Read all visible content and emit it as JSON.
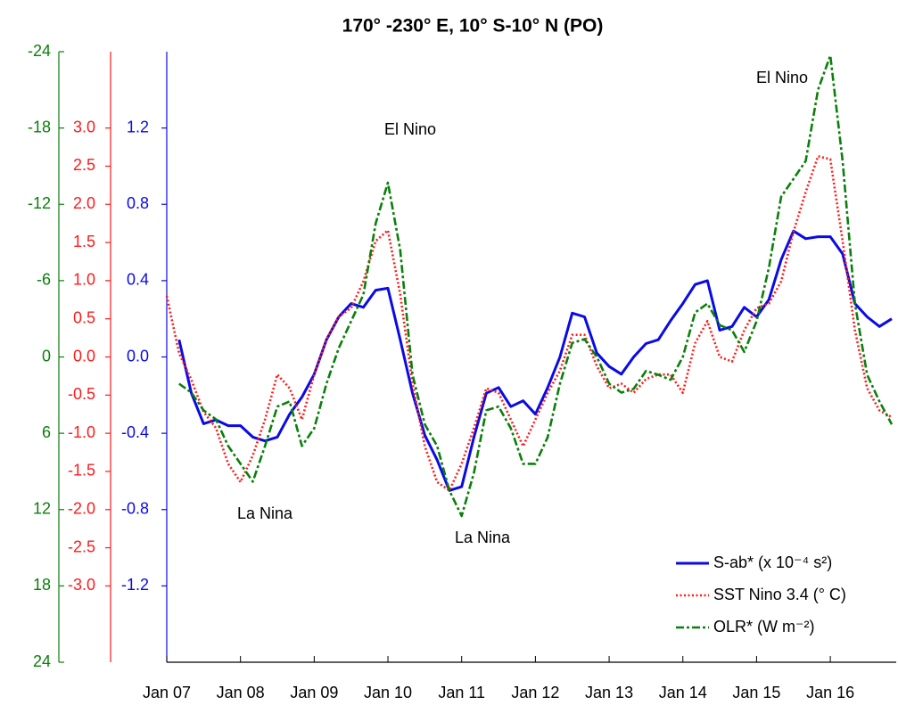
{
  "chart_data": {
    "type": "line",
    "title": "170° -230° E, 10° S-10° N  (PO)",
    "x": [
      "2007-01",
      "2007-03",
      "2007-05",
      "2007-07",
      "2007-09",
      "2007-11",
      "2008-01",
      "2008-03",
      "2008-05",
      "2008-07",
      "2008-09",
      "2008-11",
      "2009-01",
      "2009-03",
      "2009-05",
      "2009-07",
      "2009-09",
      "2009-11",
      "2010-01",
      "2010-03",
      "2010-05",
      "2010-07",
      "2010-09",
      "2010-11",
      "2011-01",
      "2011-03",
      "2011-05",
      "2011-07",
      "2011-09",
      "2011-11",
      "2012-01",
      "2012-03",
      "2012-05",
      "2012-07",
      "2012-09",
      "2012-11",
      "2013-01",
      "2013-03",
      "2013-05",
      "2013-07",
      "2013-09",
      "2013-11",
      "2014-01",
      "2014-03",
      "2014-05",
      "2014-07",
      "2014-09",
      "2014-11",
      "2015-01",
      "2015-03",
      "2015-05",
      "2015-07",
      "2015-09",
      "2015-11",
      "2016-01",
      "2016-03",
      "2016-05",
      "2016-07",
      "2016-09",
      "2016-11"
    ],
    "xlim": [
      "2007-01",
      "2016-11"
    ],
    "xticks": [
      {
        "value": "2007-01",
        "label": "Jan 07"
      },
      {
        "value": "2008-01",
        "label": "Jan 08"
      },
      {
        "value": "2009-01",
        "label": "Jan 09"
      },
      {
        "value": "2010-01",
        "label": "Jan 10"
      },
      {
        "value": "2011-01",
        "label": "Jan 11"
      },
      {
        "value": "2012-01",
        "label": "Jan 12"
      },
      {
        "value": "2013-01",
        "label": "Jan 13"
      },
      {
        "value": "2014-01",
        "label": "Jan 14"
      },
      {
        "value": "2015-01",
        "label": "Jan 15"
      },
      {
        "value": "2016-01",
        "label": "Jan 16"
      }
    ],
    "ylim": [
      -1.6,
      1.6
    ],
    "yticks": [
      -1.2,
      -0.8,
      -0.4,
      {
        "value": 0,
        "label": "0.0"
      },
      0.4,
      0.8,
      1.2
    ],
    "y2lim": [
      -4,
      4
    ],
    "y2ticks": [
      {
        "value": -3,
        "label": "-3.0"
      },
      -2.5,
      {
        "value": -2,
        "label": "-2.0"
      },
      -1.5,
      {
        "value": -1,
        "label": "-1.0"
      },
      -0.5,
      {
        "value": 0,
        "label": "0.0"
      },
      0.5,
      {
        "value": 1,
        "label": "1.0"
      },
      1.5,
      {
        "value": 2,
        "label": "2.0"
      },
      2.5,
      {
        "value": 3,
        "label": "3.0"
      }
    ],
    "y3lim": [
      24,
      -24
    ],
    "y3ticks": [
      24,
      18,
      12,
      6,
      0,
      -6,
      -12,
      -18,
      -24
    ],
    "legend": "lower right",
    "series": [
      {
        "name": "S-ab* (x 10⁻⁴ s²)",
        "color": "#0a0ae6",
        "dash": "solid",
        "axis": "y",
        "values": [
          null,
          0.09,
          -0.19,
          -0.35,
          -0.33,
          -0.36,
          -0.36,
          -0.42,
          -0.44,
          -0.42,
          -0.3,
          -0.21,
          -0.09,
          0.09,
          0.21,
          0.28,
          0.26,
          0.35,
          0.36,
          0.09,
          -0.19,
          -0.41,
          -0.54,
          -0.7,
          -0.68,
          -0.42,
          -0.19,
          -0.16,
          -0.26,
          -0.23,
          -0.3,
          -0.16,
          0.0,
          0.23,
          0.21,
          0.02,
          -0.05,
          -0.09,
          0.0,
          0.07,
          0.09,
          0.19,
          0.28,
          0.38,
          0.4,
          0.14,
          0.16,
          0.26,
          0.21,
          0.3,
          0.51,
          0.66,
          0.62,
          0.63,
          0.63,
          0.54,
          0.28,
          0.21,
          0.16,
          0.2
        ]
      },
      {
        "name": "SST Nino 3.4 (° C)",
        "color": "#ff1a1a",
        "dash": "dotted",
        "axis": "y2",
        "values": [
          0.8,
          0.05,
          -0.3,
          -0.72,
          -0.93,
          -1.4,
          -1.64,
          -1.29,
          -0.82,
          -0.23,
          -0.41,
          -0.82,
          -0.23,
          0.23,
          0.53,
          0.64,
          0.99,
          1.52,
          1.66,
          0.82,
          -0.35,
          -1.17,
          -1.64,
          -1.75,
          -1.4,
          -0.93,
          -0.41,
          -0.47,
          -0.82,
          -1.17,
          -0.82,
          -0.47,
          -0.18,
          0.29,
          0.29,
          -0.12,
          -0.41,
          -0.35,
          -0.47,
          -0.29,
          -0.23,
          -0.23,
          -0.47,
          0.18,
          0.47,
          0.0,
          -0.06,
          0.35,
          0.64,
          0.7,
          0.99,
          1.64,
          2.16,
          2.63,
          2.59,
          1.52,
          0.35,
          -0.41,
          -0.7,
          -0.79
        ]
      },
      {
        "name": "OLR* (W m⁻²)",
        "color": "#0a7f0a",
        "dash": "dashdot",
        "axis": "y3",
        "values": [
          null,
          2.1,
          2.8,
          4.2,
          4.9,
          7.0,
          8.4,
          9.8,
          7.0,
          3.9,
          3.5,
          7.0,
          5.6,
          2.1,
          -0.7,
          -2.8,
          -4.9,
          -10.5,
          -13.7,
          -8.4,
          1.4,
          5.3,
          7.0,
          10.5,
          12.5,
          9.1,
          4.2,
          3.9,
          5.6,
          8.4,
          8.4,
          6.3,
          2.1,
          -1.1,
          -1.4,
          0,
          2.1,
          2.8,
          2.5,
          1.1,
          1.4,
          1.8,
          0,
          -3.5,
          -4.2,
          -2.5,
          -2.1,
          -0.4,
          -2.8,
          -7.0,
          -12.6,
          -14.0,
          -15.4,
          -21.0,
          -23.7,
          -15.4,
          -4.2,
          1.4,
          3.5,
          5.3
        ]
      }
    ],
    "annotations": [
      "El Nino",
      "El Nino",
      "La Nina",
      "La Nina"
    ]
  }
}
